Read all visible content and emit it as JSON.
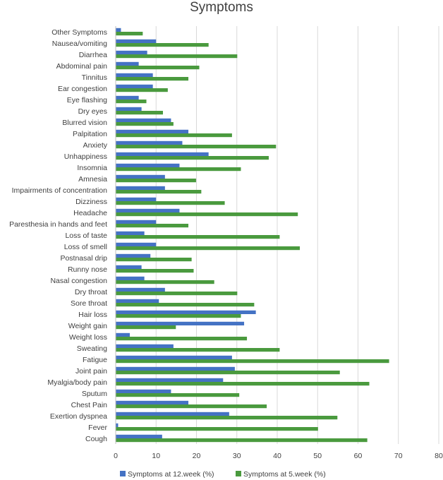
{
  "chart_data": {
    "type": "bar",
    "orientation": "horizontal",
    "title": "Symptoms",
    "xlabel": "",
    "ylabel": "",
    "xlim": [
      0,
      80
    ],
    "xticks": [
      0,
      10,
      20,
      30,
      40,
      50,
      60,
      70,
      80
    ],
    "grid": true,
    "legend_position": "bottom",
    "categories": [
      "Other Symptoms",
      "Nausea/vomiting",
      "Diarrhea",
      "Abdominal pain",
      "Tinnitus",
      "Ear congestion",
      "Eye flashing",
      "Dry eyes",
      "Blurred vision",
      "Palpitation",
      "Anxiety",
      "Unhappiness",
      "Insomnia",
      "Amnesia",
      "Impairments of concentration",
      "Dizziness",
      "Headache",
      "Paresthesia in hands and feet",
      "Loss of taste",
      "Loss of smell",
      "Postnasal drip",
      "Runny nose",
      "Nasal congestion",
      "Dry throat",
      "Sore throat",
      "Hair loss",
      "Weight gain",
      "Weight loss",
      "Sweating",
      "Fatigue",
      "Joint pain",
      "Myalgia/body pain",
      "Sputum",
      "Chest Pain",
      "Exertion dyspnea",
      "Fever",
      "Cough"
    ],
    "series": [
      {
        "name": "Symptoms at 12.week (%)",
        "color": "#4472c4",
        "values": [
          1.3,
          10.0,
          7.8,
          5.7,
          9.2,
          9.2,
          5.7,
          6.4,
          13.7,
          18.0,
          16.5,
          23.0,
          15.8,
          12.2,
          12.2,
          10.0,
          15.8,
          10.0,
          7.1,
          10.0,
          8.6,
          6.4,
          7.1,
          12.2,
          10.7,
          34.7,
          31.8,
          3.5,
          14.3,
          28.8,
          29.5,
          26.6,
          13.7,
          18.0,
          28.1,
          0.6,
          11.5
        ]
      },
      {
        "name": "Symptoms at 5.week (%)",
        "color": "#4a9a3e",
        "values": [
          6.7,
          23.0,
          30.1,
          20.7,
          18.0,
          12.9,
          7.6,
          11.7,
          14.3,
          28.8,
          39.7,
          37.9,
          31.0,
          19.9,
          21.2,
          27.0,
          45.1,
          18.0,
          40.6,
          45.6,
          18.8,
          19.3,
          24.4,
          30.1,
          34.3,
          31.0,
          14.9,
          32.5,
          40.6,
          67.7,
          55.5,
          62.8,
          30.6,
          37.4,
          54.9,
          50.1,
          62.3
        ]
      }
    ]
  }
}
